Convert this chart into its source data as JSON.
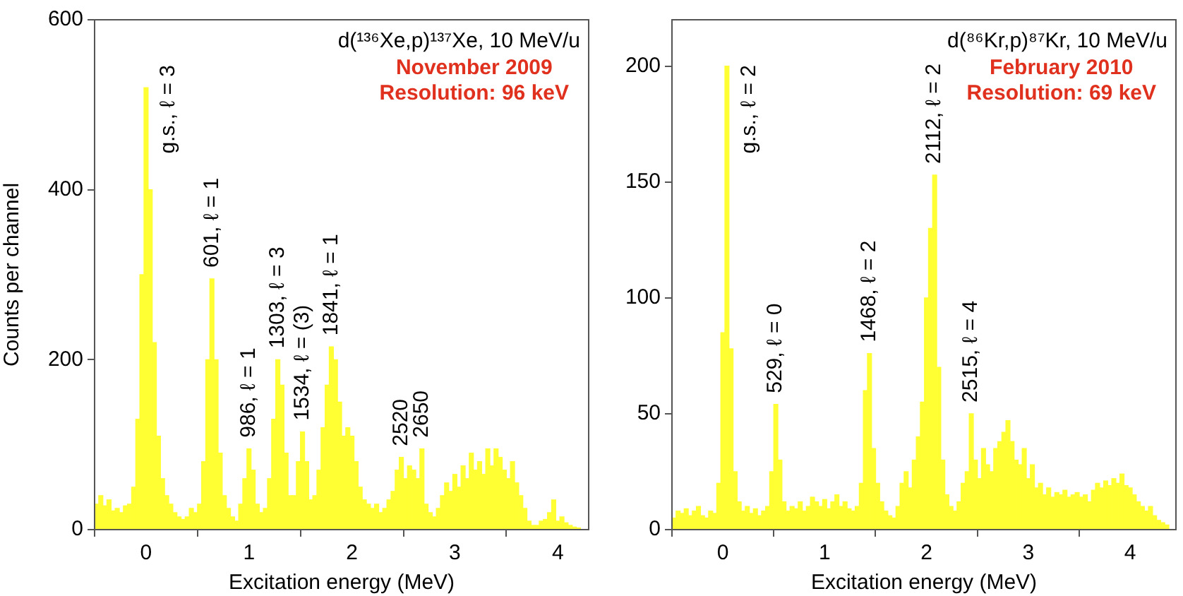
{
  "chart_data": [
    {
      "type": "histogram",
      "title": "d(¹³⁶Xe,p)¹³⁷Xe, 10 MeV/u",
      "subtitle": "November 2009\nResolution: 96 keV",
      "xlabel": "Excitation energy (MeV)",
      "ylabel": "Counts per channel",
      "color": "#ffff33",
      "bins": [
        -0.5,
        -0.46,
        -0.42,
        -0.38,
        -0.34,
        -0.3,
        -0.26,
        -0.22,
        -0.18,
        -0.14,
        -0.1,
        -0.06,
        -0.02,
        0.02,
        0.06,
        0.1,
        0.14,
        0.18,
        0.22,
        0.26,
        0.3,
        0.34,
        0.38,
        0.42,
        0.46,
        0.5,
        0.54,
        0.58,
        0.62,
        0.66,
        0.7,
        0.74,
        0.78,
        0.82,
        0.86,
        0.9,
        0.94,
        0.98,
        1.02,
        1.06,
        1.1,
        1.14,
        1.18,
        1.22,
        1.26,
        1.3,
        1.34,
        1.38,
        1.42,
        1.46,
        1.5,
        1.54,
        1.58,
        1.62,
        1.66,
        1.7,
        1.74,
        1.78,
        1.82,
        1.86,
        1.9,
        1.94,
        1.98,
        2.02,
        2.06,
        2.1,
        2.14,
        2.18,
        2.22,
        2.26,
        2.3,
        2.34,
        2.38,
        2.42,
        2.46,
        2.5,
        2.54,
        2.58,
        2.62,
        2.66,
        2.7,
        2.74,
        2.78,
        2.82,
        2.86,
        2.9,
        2.94,
        2.98,
        3.02,
        3.06,
        3.1,
        3.14,
        3.18,
        3.22,
        3.26,
        3.3,
        3.34,
        3.38,
        3.42,
        3.46,
        3.5,
        3.54,
        3.58,
        3.62,
        3.66,
        3.7,
        3.74,
        3.78,
        3.82,
        3.86,
        3.9,
        3.94,
        3.98,
        4.02,
        4.06,
        4.1,
        4.14,
        4.18,
        4.22,
        4.26,
        4.3
      ],
      "values": [
        30,
        40,
        28,
        35,
        22,
        25,
        20,
        28,
        30,
        50,
        130,
        300,
        520,
        400,
        220,
        110,
        60,
        40,
        30,
        20,
        15,
        12,
        15,
        25,
        20,
        30,
        80,
        200,
        295,
        200,
        90,
        40,
        25,
        15,
        10,
        30,
        60,
        95,
        70,
        30,
        20,
        25,
        60,
        130,
        200,
        170,
        90,
        40,
        40,
        80,
        115,
        80,
        35,
        40,
        70,
        120,
        170,
        215,
        200,
        150,
        110,
        120,
        110,
        80,
        50,
        35,
        30,
        25,
        30,
        20,
        25,
        35,
        45,
        70,
        85,
        60,
        75,
        70,
        60,
        95,
        30,
        20,
        15,
        25,
        40,
        55,
        45,
        65,
        50,
        75,
        60,
        90,
        70,
        80,
        65,
        95,
        75,
        95,
        85,
        70,
        60,
        80,
        55,
        40,
        25,
        10,
        5,
        5,
        10,
        12,
        20,
        35,
        10,
        15,
        8,
        5,
        3,
        2,
        0,
        0
      ],
      "xlim": [
        -0.5,
        4.3
      ],
      "xticks": [
        0,
        1,
        2,
        3,
        4
      ],
      "ylim": [
        0,
        600
      ],
      "yticks": [
        0,
        200,
        400,
        600
      ],
      "grid": false,
      "legend": false,
      "annotations": [
        {
          "text": "g.s., ℓ = 3",
          "x": 0,
          "y": 520
        },
        {
          "text": "601, ℓ = 1",
          "x": 0.64,
          "y": 295
        },
        {
          "text": "986, ℓ = 1",
          "x": 1,
          "y": 95
        },
        {
          "text": "1303, ℓ = 3",
          "x": 1.28,
          "y": 200
        },
        {
          "text": "1534, ℓ = (3)",
          "x": 1.52,
          "y": 115
        },
        {
          "text": "1841, ℓ = 1",
          "x": 1.8,
          "y": 215
        },
        {
          "text": "2520",
          "x": 2.48,
          "y": 85
        },
        {
          "text": "2650",
          "x": 2.68,
          "y": 95
        }
      ]
    },
    {
      "type": "histogram",
      "title": "d(⁸⁶Kr,p)⁸⁷Kr, 10 MeV/u",
      "subtitle": "February 2010\nResolution: 69 keV",
      "xlabel": "Excitation energy (MeV)",
      "color": "#ffff33",
      "bins": [
        -0.5,
        -0.46,
        -0.42,
        -0.38,
        -0.34,
        -0.3,
        -0.26,
        -0.22,
        -0.18,
        -0.14,
        -0.1,
        -0.06,
        -0.02,
        0.02,
        0.06,
        0.1,
        0.14,
        0.18,
        0.22,
        0.26,
        0.3,
        0.34,
        0.38,
        0.42,
        0.46,
        0.5,
        0.54,
        0.58,
        0.62,
        0.66,
        0.7,
        0.74,
        0.78,
        0.82,
        0.86,
        0.9,
        0.94,
        0.98,
        1.02,
        1.06,
        1.1,
        1.14,
        1.18,
        1.22,
        1.26,
        1.3,
        1.34,
        1.38,
        1.42,
        1.46,
        1.5,
        1.54,
        1.58,
        1.62,
        1.66,
        1.7,
        1.74,
        1.78,
        1.82,
        1.86,
        1.9,
        1.94,
        1.98,
        2.02,
        2.06,
        2.1,
        2.14,
        2.18,
        2.22,
        2.26,
        2.3,
        2.34,
        2.38,
        2.42,
        2.46,
        2.5,
        2.54,
        2.58,
        2.62,
        2.66,
        2.7,
        2.74,
        2.78,
        2.82,
        2.86,
        2.9,
        2.94,
        2.98,
        3.02,
        3.06,
        3.1,
        3.14,
        3.18,
        3.22,
        3.26,
        3.3,
        3.34,
        3.38,
        3.42,
        3.46,
        3.5,
        3.54,
        3.58,
        3.62,
        3.66,
        3.7,
        3.74,
        3.78,
        3.82,
        3.86,
        3.9,
        3.94,
        3.98,
        4.02,
        4.06,
        4.1,
        4.14,
        4.18,
        4.22,
        4.26,
        4.3,
        4.34,
        4.38,
        4.42
      ],
      "values": [
        5,
        8,
        7,
        9,
        6,
        8,
        10,
        6,
        5,
        8,
        7,
        20,
        85,
        200,
        78,
        25,
        12,
        8,
        10,
        7,
        9,
        6,
        8,
        10,
        25,
        54,
        30,
        12,
        8,
        10,
        9,
        12,
        8,
        10,
        14,
        12,
        10,
        13,
        9,
        12,
        15,
        10,
        12,
        9,
        8,
        10,
        20,
        60,
        76,
        35,
        20,
        12,
        8,
        6,
        5,
        10,
        20,
        25,
        18,
        30,
        40,
        55,
        100,
        130,
        153,
        70,
        30,
        15,
        10,
        8,
        12,
        20,
        25,
        50,
        30,
        22,
        35,
        28,
        25,
        35,
        38,
        42,
        47,
        38,
        30,
        28,
        35,
        22,
        28,
        18,
        20,
        15,
        18,
        14,
        16,
        15,
        17,
        14,
        15,
        16,
        14,
        15,
        12,
        17,
        20,
        18,
        21,
        19,
        22,
        20,
        24,
        19,
        18,
        15,
        12,
        10,
        8,
        10,
        6,
        4,
        3,
        2,
        0
      ],
      "xlim": [
        -0.5,
        4.45
      ],
      "xticks": [
        0,
        1,
        2,
        3,
        4
      ],
      "ylim": [
        0,
        220
      ],
      "yticks": [
        0,
        50,
        100,
        150,
        200
      ],
      "grid": false,
      "legend": false,
      "annotations": [
        {
          "text": "g.s., ℓ = 2",
          "x": 0.04,
          "y": 200
        },
        {
          "text": "529, ℓ = 0",
          "x": 0.52,
          "y": 54
        },
        {
          "text": "1468, ℓ = 2",
          "x": 1.44,
          "y": 76
        },
        {
          "text": "2112, ℓ = 2",
          "x": 2.08,
          "y": 153
        },
        {
          "text": "2515, ℓ = 4",
          "x": 2.44,
          "y": 50
        }
      ]
    }
  ]
}
